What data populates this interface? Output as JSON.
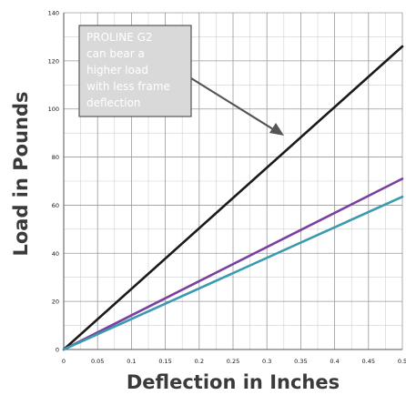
{
  "chart_data": {
    "type": "line",
    "xlabel": "Deflection in Inches",
    "ylabel": "Load in Pounds",
    "xlim": [
      0,
      0.5
    ],
    "ylim": [
      0,
      140
    ],
    "x_ticks": [
      "0",
      "0.05",
      "0.1",
      "0.15",
      "0.2",
      "0.25",
      "0.3",
      "0.35",
      "0.4",
      "0.45",
      "0.5"
    ],
    "y_ticks": [
      "0",
      "20",
      "40",
      "60",
      "80",
      "100",
      "120",
      "140"
    ],
    "grid": true,
    "series": [
      {
        "color": "#1a1a1a",
        "x": [
          0,
          0.5
        ],
        "y": [
          0,
          126
        ]
      },
      {
        "color": "#7b3fa0",
        "x": [
          0,
          0.5
        ],
        "y": [
          0,
          71
        ]
      },
      {
        "color": "#3a9ab0",
        "x": [
          0,
          0.5
        ],
        "y": [
          0,
          63.5
        ]
      }
    ],
    "annotation": {
      "lines": [
        "PROLINE G2",
        "can bear a",
        "higher load",
        "with less frame",
        "deflection"
      ]
    }
  }
}
